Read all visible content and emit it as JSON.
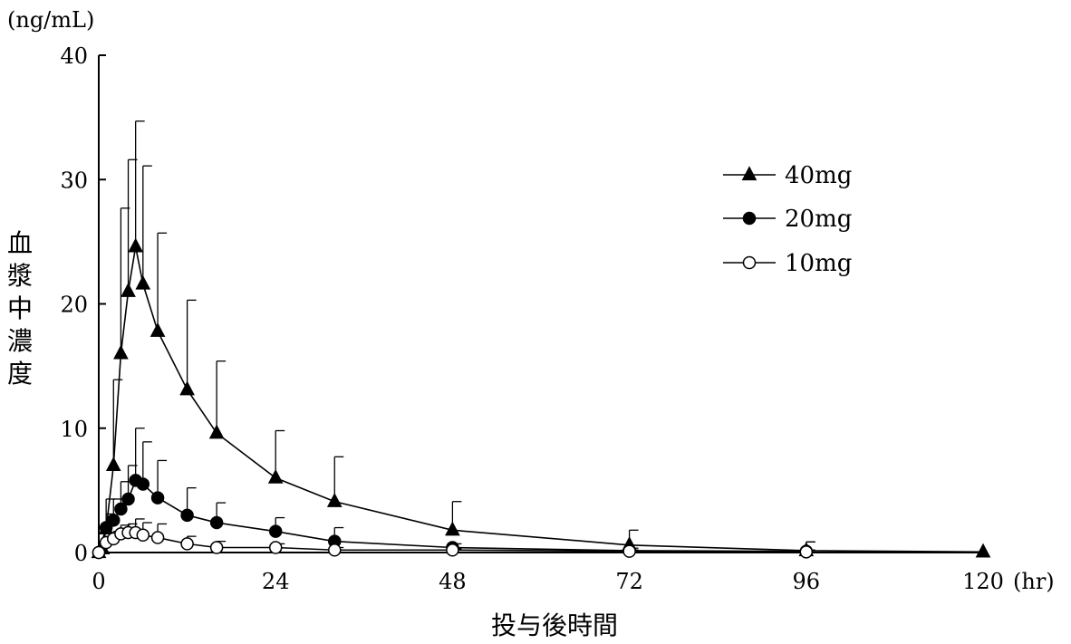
{
  "chart_data": {
    "type": "line",
    "x_unit": "(hr)",
    "y_unit": "(ng/mL)",
    "xlabel": "投与後時間",
    "ylabel": "血漿中濃度",
    "xlim": [
      0,
      120
    ],
    "ylim": [
      0,
      40
    ],
    "x_ticks": [
      0,
      24,
      48,
      72,
      96,
      120
    ],
    "y_ticks": [
      0,
      10,
      20,
      30,
      40
    ],
    "grid": false,
    "legend_position": "top-right",
    "series": [
      {
        "name": "40mg",
        "marker": "triangle-filled",
        "x": [
          0,
          0.5,
          1,
          2,
          3,
          4,
          5,
          6,
          8,
          12,
          16,
          24,
          32,
          48,
          72,
          96,
          120
        ],
        "y": [
          0,
          0.3,
          1.9,
          7.0,
          16.0,
          21.0,
          24.6,
          21.6,
          17.8,
          13.1,
          9.6,
          6.0,
          4.1,
          1.8,
          0.6,
          0.15,
          0.05
        ],
        "err": [
          0,
          0.5,
          1.2,
          6.9,
          11.7,
          10.6,
          10.1,
          9.5,
          7.9,
          7.2,
          5.8,
          3.8,
          3.6,
          2.3,
          1.2,
          0.7,
          0
        ],
        "connect_origin": false
      },
      {
        "name": "20mg",
        "marker": "circle-filled",
        "x": [
          0,
          1,
          2,
          3,
          4,
          5,
          6,
          8,
          12,
          16,
          24,
          32,
          48,
          72,
          96
        ],
        "y": [
          0,
          2.0,
          2.6,
          3.5,
          4.3,
          5.8,
          5.5,
          4.4,
          3.0,
          2.4,
          1.7,
          0.9,
          0.4,
          0.15,
          0.1
        ],
        "err": [
          0,
          2.3,
          1.7,
          2.2,
          2.7,
          4.2,
          3.4,
          3.0,
          2.2,
          1.6,
          1.1,
          1.1,
          0.3,
          0.2,
          0.1
        ],
        "connect_origin": false
      },
      {
        "name": "10mg",
        "marker": "circle-open",
        "x": [
          0,
          1,
          2,
          3,
          4,
          5,
          6,
          8,
          12,
          16,
          24,
          32,
          48,
          72,
          96
        ],
        "y": [
          0,
          0.8,
          1.1,
          1.5,
          1.6,
          1.6,
          1.4,
          1.2,
          0.7,
          0.4,
          0.4,
          0.2,
          0.2,
          0.1,
          0.05
        ],
        "err": [
          0,
          0.5,
          0.6,
          0.7,
          0.7,
          1.1,
          1.0,
          1.1,
          0.6,
          0.5,
          0.3,
          0.2,
          0.1,
          0.1,
          0.8
        ],
        "connect_origin": false
      }
    ]
  }
}
